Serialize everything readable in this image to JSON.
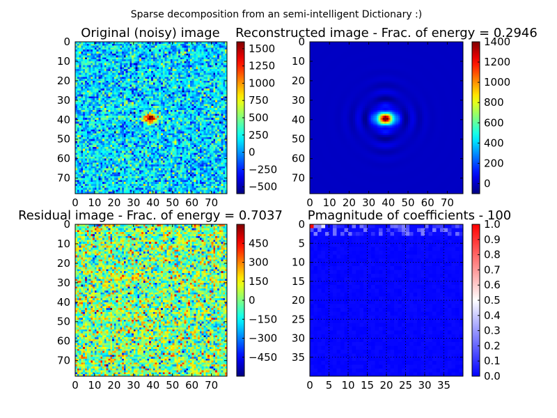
{
  "figure": {
    "suptitle": "Sparse decomposition from an semi-intelligent Dictionary :)"
  },
  "chart_data": [
    {
      "type": "heatmap",
      "title": "Original (noisy) image",
      "colormap": "jet",
      "grid": false,
      "x_ticks": [
        "0",
        "10",
        "20",
        "30",
        "40",
        "50",
        "60",
        "70"
      ],
      "y_ticks": [
        "0",
        "10",
        "20",
        "30",
        "40",
        "50",
        "60",
        "70"
      ],
      "extent": [
        0,
        78
      ],
      "colorbar": {
        "min": -600,
        "max": 1600,
        "ticks": [
          "1500",
          "1250",
          "1000",
          "750",
          "500",
          "250",
          "0",
          "−250",
          "−500"
        ],
        "tick_values": [
          1500,
          1250,
          1000,
          750,
          500,
          250,
          0,
          -250,
          -500
        ]
      },
      "content": {
        "kind": "noisy-blob",
        "center": [
          39,
          38
        ],
        "peak": 1500,
        "noise_mean": 150,
        "noise_std": 230
      }
    },
    {
      "type": "heatmap",
      "title": "Reconstructed image - Frac. of energy = 0.2946",
      "colormap": "jet",
      "grid": false,
      "x_ticks": [
        "0",
        "10",
        "20",
        "30",
        "40",
        "50",
        "60",
        "70"
      ],
      "y_ticks": [
        "0",
        "10",
        "20",
        "30",
        "40",
        "50",
        "60",
        "70"
      ],
      "extent": [
        0,
        78
      ],
      "colorbar": {
        "min": -100,
        "max": 1400,
        "ticks": [
          "1400",
          "1200",
          "1000",
          "800",
          "600",
          "400",
          "200",
          "0"
        ],
        "tick_values": [
          1400,
          1200,
          1000,
          800,
          600,
          400,
          200,
          0
        ]
      },
      "content": {
        "kind": "smooth-blob",
        "center": [
          39,
          38
        ],
        "peak": 1400,
        "background": 0
      }
    },
    {
      "type": "heatmap",
      "title": "Residual image - Frac. of energy = 0.7037",
      "colormap": "jet",
      "grid": false,
      "x_ticks": [
        "0",
        "10",
        "20",
        "30",
        "40",
        "50",
        "60",
        "70"
      ],
      "y_ticks": [
        "0",
        "10",
        "20",
        "30",
        "40",
        "50",
        "60",
        "70"
      ],
      "extent": [
        0,
        78
      ],
      "colorbar": {
        "min": -600,
        "max": 600,
        "ticks": [
          "450",
          "300",
          "150",
          "0",
          "−150",
          "−300",
          "−450"
        ],
        "tick_values": [
          450,
          300,
          150,
          0,
          -150,
          -300,
          -450
        ]
      },
      "content": {
        "kind": "noise",
        "mean": 0,
        "std": 170
      }
    },
    {
      "type": "heatmap",
      "title": "Pmagnitude of coefficients - 100",
      "colormap": "bwr",
      "grid": true,
      "x_ticks": [
        "0",
        "5",
        "10",
        "15",
        "20",
        "25",
        "30",
        "35"
      ],
      "y_ticks": [
        "0",
        "5",
        "10",
        "15",
        "20",
        "25",
        "30",
        "35"
      ],
      "extent": [
        0,
        40
      ],
      "colorbar": {
        "min": 0,
        "max": 1,
        "ticks": [
          "1.0",
          "0.9",
          "0.8",
          "0.7",
          "0.6",
          "0.5",
          "0.4",
          "0.3",
          "0.2",
          "0.1",
          "0.0"
        ],
        "tick_values": [
          1,
          0.9,
          0.8,
          0.7,
          0.6,
          0.5,
          0.4,
          0.3,
          0.2,
          0.1,
          0
        ]
      },
      "content": {
        "kind": "sparse-coefficients",
        "nonzero_rows": [
          0,
          1,
          2
        ],
        "peak": 1.0
      }
    }
  ]
}
